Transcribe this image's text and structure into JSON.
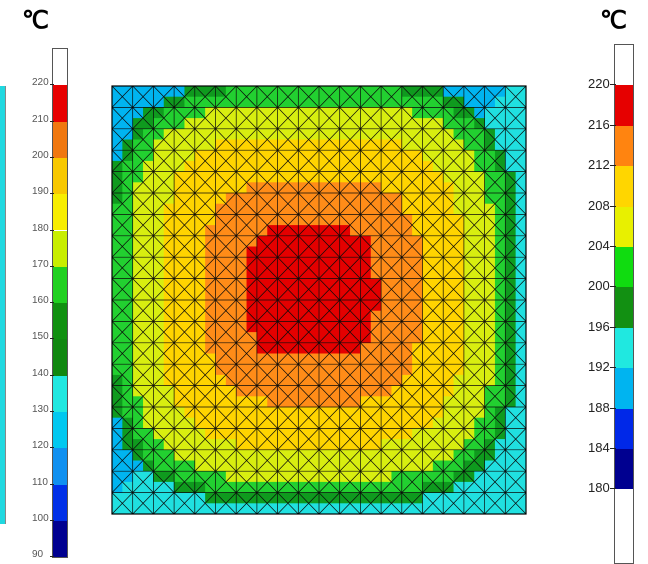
{
  "units": {
    "left": "℃",
    "right": "℃"
  },
  "left_scale": {
    "labels": [
      "220",
      "210",
      "200",
      "190",
      "180",
      "170",
      "160",
      "150",
      "140",
      "130",
      "120",
      "110",
      "100",
      "90"
    ],
    "colors": [
      "#ffffff",
      "#e80000",
      "#f07810",
      "#f8c800",
      "#f8ee00",
      "#c8ee00",
      "#20d020",
      "#109010",
      "#108810",
      "#20e8e0",
      "#00c8f0",
      "#1090f0",
      "#0030e8",
      "#000090"
    ]
  },
  "right_scale": {
    "labels": [
      "220",
      "216",
      "212",
      "208",
      "204",
      "200",
      "196",
      "192",
      "188",
      "184",
      "180"
    ],
    "colors": [
      "#ffffff",
      "#e60000",
      "#ff8410",
      "#ffd600",
      "#e8f000",
      "#10dc10",
      "#129012",
      "#20e8e0",
      "#00b4f0",
      "#0028e8",
      "#000090"
    ]
  },
  "field": {
    "levels": [
      "#00b4f0",
      "#20e0e0",
      "#0f9a1e",
      "#22d030",
      "#d8ee10",
      "#ffd400",
      "#ff8c18",
      "#e40000"
    ]
  }
}
